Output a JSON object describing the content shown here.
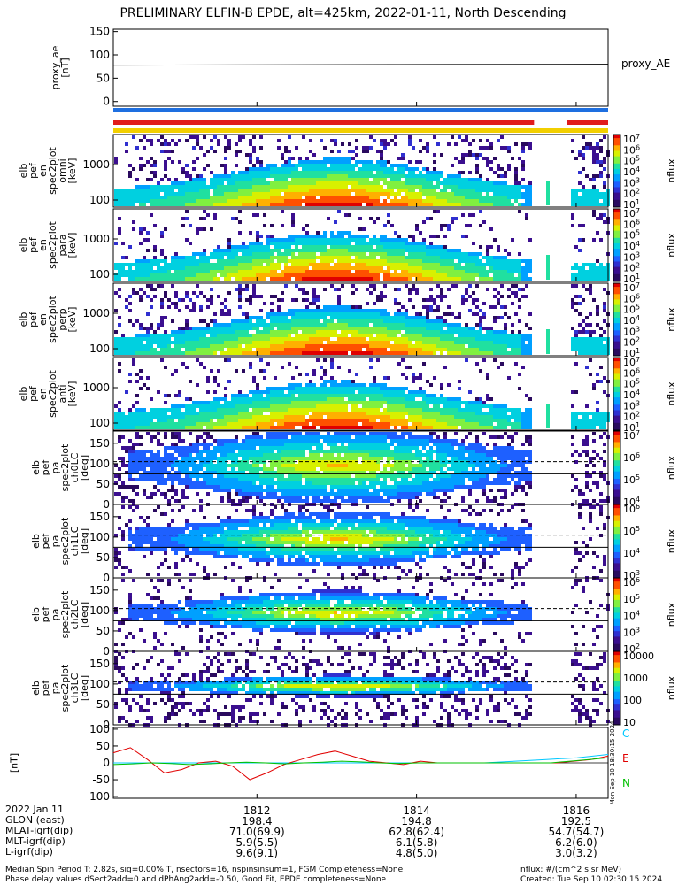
{
  "title": "PRELIMINARY ELFIN-B EPDE, alt=425km, 2022-01-11, North Descending",
  "colors": {
    "bar_blue": "#1e6fe0",
    "bar_red": "#e11c1c",
    "bar_yellow": "#f2cf00",
    "mag_c": "#00c8ff",
    "mag_e": "#e10000",
    "mag_n": "#00c000"
  },
  "proxy_ae": {
    "ylabel": "proxy_ae\n[nT]",
    "label": "proxy_AE",
    "yticks": [
      "150",
      "100",
      "50",
      "0"
    ],
    "yrange": [
      -10,
      155
    ],
    "value": 78
  },
  "spec_panels": [
    {
      "ylabel": "elb\npef\nen\nspec2plot\nomni\n[keV]",
      "cb_ticks": [
        "10^7",
        "10^6",
        "10^5",
        "10^4",
        "10^3",
        "10^2",
        "10^1"
      ],
      "cb_label": "nflux"
    },
    {
      "ylabel": "elb\npef\nen\nspec2plot\npara\n[keV]",
      "cb_ticks": [
        "10^7",
        "10^6",
        "10^5",
        "10^4",
        "10^3",
        "10^2",
        "10^1"
      ],
      "cb_label": "nflux"
    },
    {
      "ylabel": "elb\npef\nen\nspec2plot\nperp\n[keV]",
      "cb_ticks": [
        "10^7",
        "10^6",
        "10^5",
        "10^4",
        "10^3",
        "10^2",
        "10^1"
      ],
      "cb_label": "nflux"
    },
    {
      "ylabel": "elb\npef\nen\nspec2plot\nanti\n[keV]",
      "cb_ticks": [
        "10^7",
        "10^6",
        "10^5",
        "10^4",
        "10^3",
        "10^2",
        "10^1"
      ],
      "cb_label": "nflux"
    }
  ],
  "energy_yticks": [
    "1000",
    "100"
  ],
  "pa_panels": [
    {
      "ylabel": "elb\npef\npa\nspec2plot\nch0LC\n[deg]",
      "cb_ticks": [
        "10^7",
        "10^6",
        "10^5",
        "10^4"
      ],
      "cb_label": "nflux"
    },
    {
      "ylabel": "elb\npef\npa\nspec2plot\nch1LC\n[deg]",
      "cb_ticks": [
        "10^6",
        "10^5",
        "10^4",
        "10^3"
      ],
      "cb_label": "nflux"
    },
    {
      "ylabel": "elb\npef\npa\nspec2plot\nch2LC\n[deg]",
      "cb_ticks": [
        "10^6",
        "10^5",
        "10^4",
        "10^3",
        "10^2"
      ],
      "cb_label": "nflux"
    },
    {
      "ylabel": "elb\npef\npa\nspec2plot\nch3LC\n[deg]",
      "cb_ticks": [
        "10000",
        "1000",
        "100",
        "10"
      ],
      "cb_label": "nflux"
    }
  ],
  "pa_yticks": [
    "150",
    "100",
    "50",
    "0"
  ],
  "mag": {
    "ylabel": "[nT]",
    "yticks": [
      "100",
      "50",
      "0",
      "-50",
      "-100"
    ],
    "legend": [
      "C",
      "E",
      "N"
    ],
    "side_text": "Mon Sep 10 18:30:15 2024"
  },
  "chart_data": {
    "type": "heatmap",
    "title": "PRELIMINARY ELFIN-B EPDE, alt=425km, 2022-01-11, North Descending",
    "x_ticks": [
      "1812",
      "1814",
      "1816"
    ],
    "x_range_sec": [
      1810.2,
      1816.4
    ],
    "data_gap_sec": [
      1815.45,
      1815.95
    ],
    "energy_range_keV": [
      63,
      7000
    ],
    "pitch_angle_range_deg": [
      0,
      180
    ],
    "proxy_ae_nT": 78,
    "colorbar_scale": "log",
    "magnetic_series": [
      {
        "name": "C",
        "values": [
          0,
          0,
          0,
          0,
          0,
          0,
          0,
          0,
          0,
          0,
          0,
          0,
          0,
          5,
          10,
          15,
          25
        ]
      },
      {
        "name": "E",
        "values": [
          30,
          45,
          10,
          -30,
          -20,
          0,
          5,
          -10,
          -50,
          -30,
          -5,
          10,
          25,
          35,
          20,
          5,
          0,
          -5,
          5,
          0,
          0,
          0,
          0,
          0,
          0,
          0,
          0,
          5,
          10,
          20
        ]
      },
      {
        "name": "N",
        "values": [
          -5,
          -3,
          0,
          -2,
          -5,
          -3,
          0,
          2,
          0,
          -3,
          0,
          2,
          5,
          3,
          0,
          -2,
          0,
          0,
          0,
          0,
          0,
          0,
          0,
          0,
          5,
          10,
          15
        ]
      }
    ]
  },
  "footer": {
    "rows": [
      {
        "label": "2022 Jan 11",
        "values": [
          "1812",
          "1814",
          "1816"
        ]
      },
      {
        "label": "GLON (east)",
        "values": [
          "198.4",
          "194.8",
          "192.5"
        ]
      },
      {
        "label": "MLAT-igrf(dip)",
        "values": [
          "71.0(69.9)",
          "62.8(62.4)",
          "54.7(54.7)"
        ]
      },
      {
        "label": "MLT-igrf(dip)",
        "values": [
          "5.9(5.5)",
          "6.1(5.8)",
          "6.2(6.0)"
        ]
      },
      {
        "label": "L-igrf(dip)",
        "values": [
          "9.6(9.1)",
          "4.8(5.0)",
          "3.0(3.2)"
        ]
      }
    ],
    "note1": "Median Spin Period T: 2.82s, sig=0.00% T, nsectors=16, nspinsinsum=1, FGM Completeness=None",
    "note2": "Phase delay values dSect2add=0 and dPhAng2add=-0.50, Good Fit, EPDE completeness=None",
    "unit": "nflux: #/(cm^2 s sr MeV)",
    "created": "Created: Tue Sep 10 02:30:15 2024"
  }
}
